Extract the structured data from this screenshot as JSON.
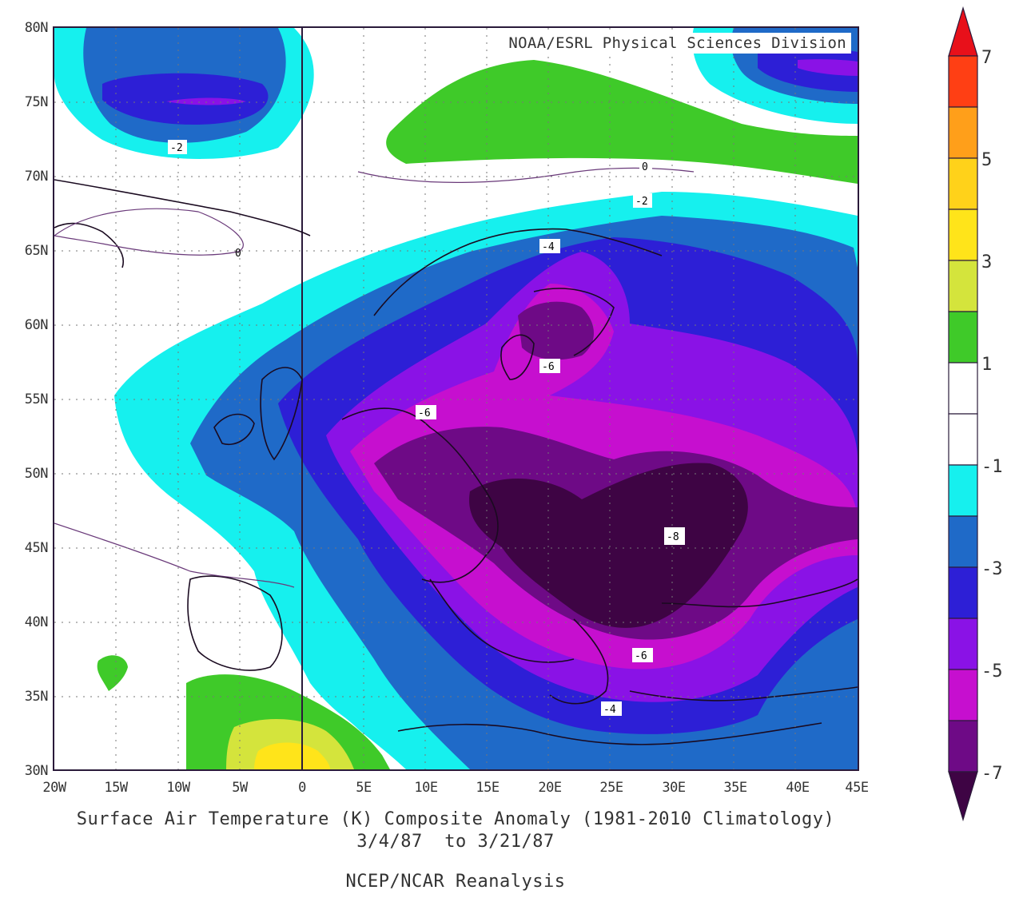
{
  "credit": "NOAA/ESRL Physical Sciences Division",
  "lat_labels": [
    "80N",
    "75N",
    "70N",
    "65N",
    "60N",
    "55N",
    "50N",
    "45N",
    "40N",
    "35N",
    "30N"
  ],
  "lon_labels": [
    "20W",
    "15W",
    "10W",
    "5W",
    "0",
    "5E",
    "10E",
    "15E",
    "20E",
    "25E",
    "30E",
    "35E",
    "40E",
    "45E"
  ],
  "caption": {
    "line1": "Surface Air Temperature (K) Composite Anomaly (1981-2010 Climatology)",
    "line2": "3/4/87  to 3/21/87",
    "line3": "NCEP/NCAR Reanalysis"
  },
  "contour_labels": {
    "neg2_north": "-2",
    "neg2_scand": "-2",
    "zero_scand": "0",
    "zero_atl": "0",
    "neg4_north": "-4",
    "neg6_scand": "-6",
    "neg6_west": "-6",
    "neg8": "-8",
    "neg6_south": "-6",
    "neg4_south": "-4"
  },
  "colorbar": {
    "labels": [
      "7",
      "5",
      "3",
      "1",
      "-1",
      "-3",
      "-5",
      "-7"
    ],
    "colors": {
      "above_7": "#e8101a",
      "6_7": "#ff3f14",
      "5_6": "#ff9f1a",
      "4_5": "#ffd21a",
      "3_4": "#ffe41a",
      "2_3": "#d4e43c",
      "1_2": "#3fca29",
      "0_1": "#ffffff",
      "m1_0": "#ffffff",
      "m2_m1": "#16f0ee",
      "m3_m2": "#1f6ac8",
      "m4_m3": "#2d1fd6",
      "m5_m4": "#8a12e6",
      "m6_m5": "#c60fcf",
      "m7_m6": "#6e0a86",
      "below_m7": "#3e0444"
    }
  },
  "map_extent": {
    "lon": [
      -20,
      45
    ],
    "lat": [
      30,
      80
    ]
  }
}
